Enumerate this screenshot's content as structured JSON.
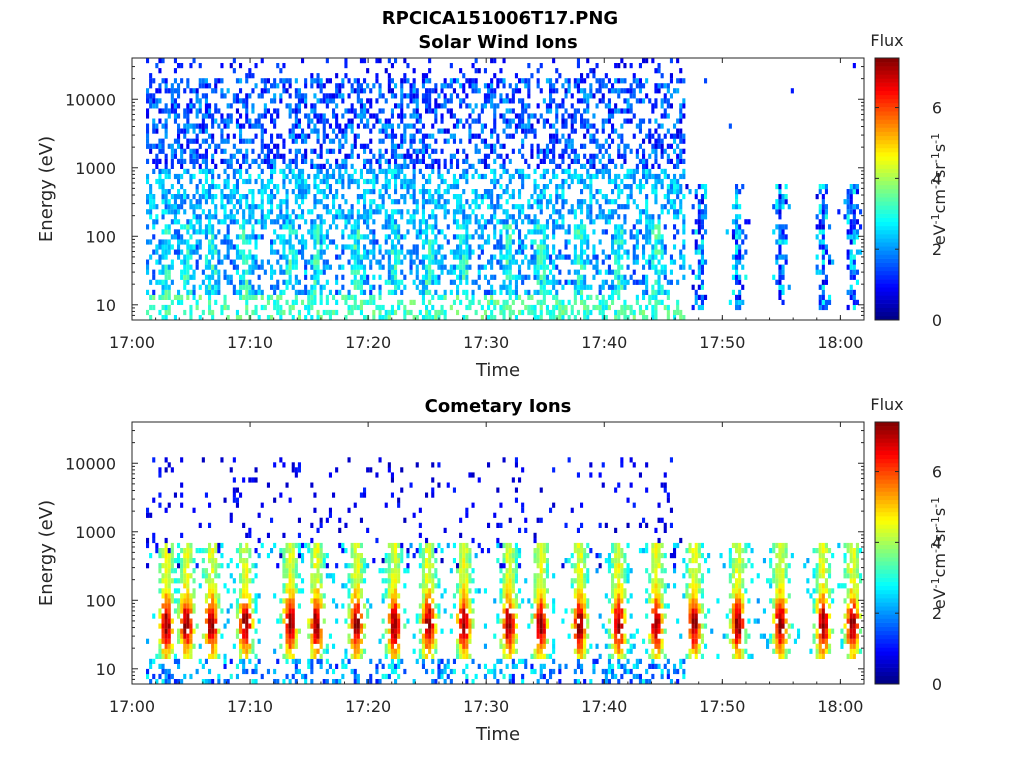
{
  "figure": {
    "title": "RPCICA151006T17.PNG"
  },
  "chart_data": [
    {
      "type": "heatmap",
      "title": "Solar Wind Ions",
      "xlabel": "Time",
      "ylabel": "Energy (eV)",
      "xticks": [
        "17:00",
        "17:10",
        "17:20",
        "17:30",
        "17:40",
        "17:50",
        "18:00"
      ],
      "xlim": [
        "17:00",
        "18:02"
      ],
      "yscale": "log",
      "yticks": [
        "10",
        "100",
        "1000",
        "10000"
      ],
      "ylim": [
        6,
        40000
      ],
      "colorbar": {
        "title": "Flux",
        "label": "eV-1cm-2sr-1s-1",
        "ticks": [
          "0",
          "2",
          "4",
          "6"
        ],
        "range": [
          0,
          7.4
        ],
        "colormap": "jet"
      },
      "features": [
        {
          "time_range": [
            "17:01",
            "17:47"
          ],
          "energy_range": [
            1000,
            30000
          ],
          "flux": [
            0.8,
            2.2
          ],
          "note": "sparse high-energy background"
        },
        {
          "time_range": [
            "17:01",
            "17:47"
          ],
          "energy_range": [
            100,
            1000
          ],
          "flux": [
            1.5,
            3.0
          ]
        },
        {
          "time_range": [
            "17:01",
            "17:47"
          ],
          "energy_range": [
            6,
            100
          ],
          "flux": [
            1.0,
            3.8
          ]
        },
        {
          "time_range": [
            "17:47",
            "18:02"
          ],
          "energy_range": [
            6,
            600
          ],
          "flux": [
            0.8,
            3.0
          ],
          "note": "isolated bursts"
        }
      ]
    },
    {
      "type": "heatmap",
      "title": "Cometary Ions",
      "xlabel": "Time",
      "ylabel": "Energy (eV)",
      "xticks": [
        "17:00",
        "17:10",
        "17:20",
        "17:30",
        "17:40",
        "17:50",
        "18:00"
      ],
      "xlim": [
        "17:00",
        "18:02"
      ],
      "yscale": "log",
      "yticks": [
        "10",
        "100",
        "1000",
        "10000"
      ],
      "ylim": [
        6,
        40000
      ],
      "colorbar": {
        "title": "Flux",
        "label": "eV-1cm-2sr-1s-1",
        "ticks": [
          "0",
          "2",
          "4",
          "6"
        ],
        "range": [
          0,
          7.4
        ],
        "colormap": "jet"
      },
      "features": [
        {
          "time_range": [
            "17:01",
            "17:47"
          ],
          "energy_range": [
            300,
            12000
          ],
          "flux": [
            0.5,
            1.2
          ],
          "note": "sparse dots"
        },
        {
          "time_range": [
            "17:02",
            "18:01"
          ],
          "energy_range": [
            15,
            600
          ],
          "flux": [
            2.5,
            7.0
          ],
          "note": "periodic bursts, peak near 40 eV"
        },
        {
          "time_range": [
            "17:01",
            "17:47"
          ],
          "energy_range": [
            6,
            15
          ],
          "flux": [
            1.0,
            3.0
          ],
          "note": "low-energy stripes"
        }
      ]
    }
  ]
}
